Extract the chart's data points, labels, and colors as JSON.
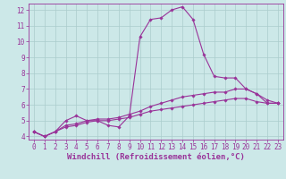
{
  "background_color": "#cce8e8",
  "line_color": "#993399",
  "grid_color": "#aacccc",
  "xlabel": "Windchill (Refroidissement éolien,°C)",
  "xlim": [
    -0.5,
    23.5
  ],
  "ylim": [
    3.8,
    12.4
  ],
  "yticks": [
    4,
    5,
    6,
    7,
    8,
    9,
    10,
    11,
    12
  ],
  "xticks": [
    0,
    1,
    2,
    3,
    4,
    5,
    6,
    7,
    8,
    9,
    10,
    11,
    12,
    13,
    14,
    15,
    16,
    17,
    18,
    19,
    20,
    21,
    22,
    23
  ],
  "series1_x": [
    0,
    1,
    2,
    3,
    4,
    5,
    6,
    7,
    8,
    9,
    10,
    11,
    12,
    13,
    14,
    15,
    16,
    17,
    18,
    19,
    20,
    21,
    22,
    23
  ],
  "series1_y": [
    4.3,
    4.0,
    4.3,
    5.0,
    5.3,
    5.0,
    5.0,
    4.7,
    4.6,
    5.3,
    10.3,
    11.4,
    11.5,
    12.0,
    12.2,
    11.4,
    9.2,
    7.8,
    7.7,
    7.7,
    7.0,
    6.7,
    6.1,
    6.1
  ],
  "series2_x": [
    0,
    1,
    2,
    3,
    4,
    5,
    6,
    7,
    8,
    9,
    10,
    11,
    12,
    13,
    14,
    15,
    16,
    17,
    18,
    19,
    20,
    21,
    22,
    23
  ],
  "series2_y": [
    4.3,
    4.0,
    4.3,
    4.7,
    4.8,
    5.0,
    5.1,
    5.1,
    5.2,
    5.4,
    5.6,
    5.9,
    6.1,
    6.3,
    6.5,
    6.6,
    6.7,
    6.8,
    6.8,
    7.0,
    7.0,
    6.7,
    6.3,
    6.1
  ],
  "series3_x": [
    0,
    1,
    2,
    3,
    4,
    5,
    6,
    7,
    8,
    9,
    10,
    11,
    12,
    13,
    14,
    15,
    16,
    17,
    18,
    19,
    20,
    21,
    22,
    23
  ],
  "series3_y": [
    4.3,
    4.0,
    4.3,
    4.6,
    4.7,
    4.9,
    5.0,
    5.0,
    5.1,
    5.2,
    5.4,
    5.6,
    5.7,
    5.8,
    5.9,
    6.0,
    6.1,
    6.2,
    6.3,
    6.4,
    6.4,
    6.2,
    6.1,
    6.1
  ],
  "marker": "D",
  "marker_size": 1.8,
  "line_width": 0.8,
  "xlabel_fontsize": 6.5,
  "tick_fontsize": 5.5
}
